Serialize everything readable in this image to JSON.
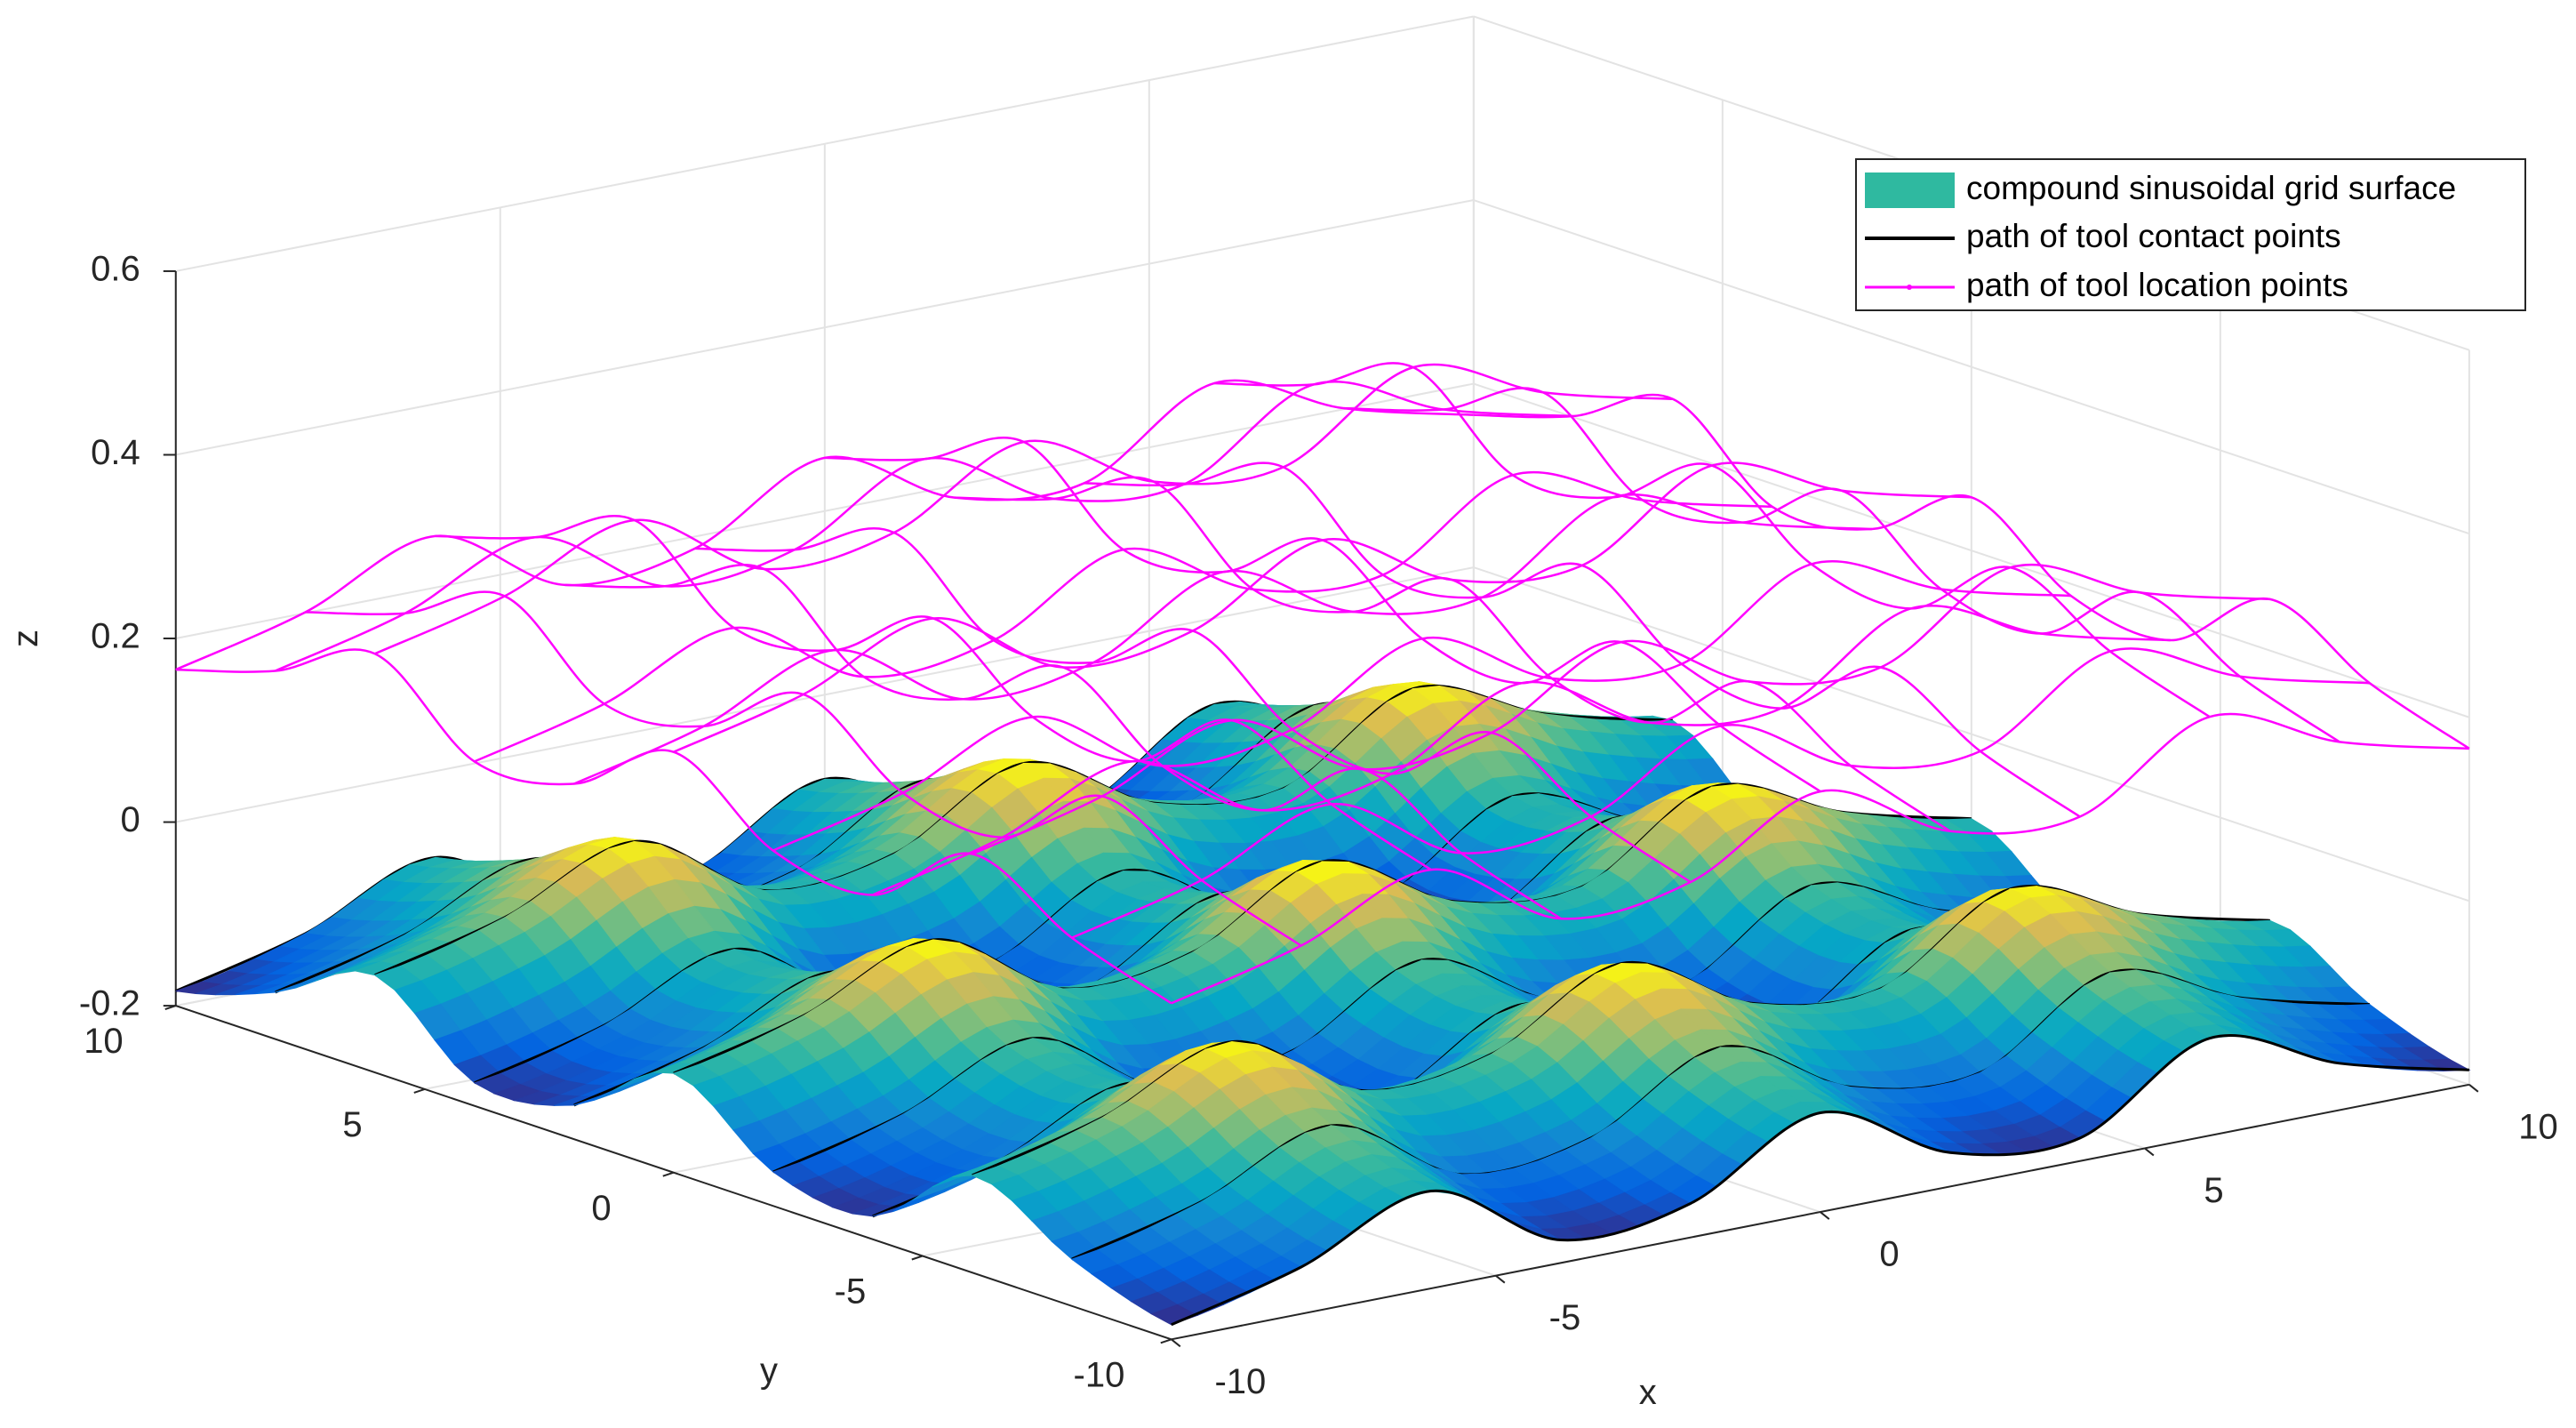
{
  "chart_data": {
    "type": "surface3d",
    "xlabel": "x",
    "ylabel": "y",
    "zlabel": "z",
    "xlim": [
      -10,
      10
    ],
    "ylim": [
      -10,
      10
    ],
    "zlim": [
      -0.2,
      0.6
    ],
    "xticks": [
      -10,
      -5,
      0,
      5,
      10
    ],
    "yticks": [
      -10,
      -5,
      0,
      5,
      10
    ],
    "zticks": [
      -0.2,
      0,
      0.2,
      0.4,
      0.6
    ],
    "grid": true,
    "legend_location": "northeast",
    "x": [
      -10,
      -8,
      -6,
      -4,
      -2,
      0,
      2,
      4,
      6,
      8,
      10
    ],
    "y": [
      -10,
      -8,
      -6,
      -4,
      -2,
      0,
      2,
      4,
      6,
      8,
      10
    ],
    "series": [
      {
        "name": "compound sinusoidal grid surface",
        "color": "#2fb9a0",
        "colormap": "parula",
        "z": [
          [
            -0.184,
            -0.149,
            -0.094,
            -0.175,
            -0.163,
            -0.092,
            -0.163,
            -0.175,
            -0.094,
            -0.149,
            -0.184
          ],
          [
            -0.149,
            -0.114,
            -0.059,
            -0.14,
            -0.128,
            -0.057,
            -0.128,
            -0.14,
            -0.059,
            -0.114,
            -0.149
          ],
          [
            -0.094,
            -0.059,
            -0.004,
            -0.085,
            -0.073,
            -0.002,
            -0.073,
            -0.085,
            -0.004,
            -0.059,
            -0.094
          ],
          [
            -0.175,
            -0.14,
            -0.085,
            -0.166,
            -0.154,
            -0.083,
            -0.154,
            -0.166,
            -0.085,
            -0.14,
            -0.175
          ],
          [
            -0.163,
            -0.128,
            -0.073,
            -0.154,
            -0.142,
            -0.071,
            -0.142,
            -0.154,
            -0.073,
            -0.128,
            -0.163
          ],
          [
            -0.092,
            -0.057,
            -0.002,
            -0.083,
            -0.071,
            0.0,
            -0.071,
            -0.083,
            -0.002,
            -0.057,
            -0.092
          ],
          [
            -0.163,
            -0.128,
            -0.073,
            -0.154,
            -0.142,
            -0.071,
            -0.142,
            -0.154,
            -0.073,
            -0.128,
            -0.163
          ],
          [
            -0.175,
            -0.14,
            -0.085,
            -0.166,
            -0.154,
            -0.083,
            -0.154,
            -0.166,
            -0.085,
            -0.14,
            -0.175
          ],
          [
            -0.094,
            -0.059,
            -0.004,
            -0.085,
            -0.073,
            -0.002,
            -0.073,
            -0.085,
            -0.004,
            -0.059,
            -0.094
          ],
          [
            -0.149,
            -0.114,
            -0.059,
            -0.14,
            -0.128,
            -0.057,
            -0.128,
            -0.14,
            -0.059,
            -0.114,
            -0.149
          ],
          [
            -0.184,
            -0.149,
            -0.094,
            -0.175,
            -0.163,
            -0.092,
            -0.163,
            -0.175,
            -0.094,
            -0.149,
            -0.184
          ]
        ]
      },
      {
        "name": "path of tool contact points",
        "color": "#000000"
      },
      {
        "name": "path of tool location points",
        "color": "#ff00ff",
        "z": [
          [
            0.166,
            0.201,
            0.256,
            0.175,
            0.187,
            0.258,
            0.187,
            0.175,
            0.256,
            0.201,
            0.166
          ],
          [
            0.201,
            0.236,
            0.291,
            0.21,
            0.222,
            0.293,
            0.222,
            0.21,
            0.291,
            0.236,
            0.201
          ],
          [
            0.256,
            0.291,
            0.346,
            0.265,
            0.277,
            0.348,
            0.277,
            0.265,
            0.346,
            0.291,
            0.256
          ],
          [
            0.175,
            0.21,
            0.265,
            0.184,
            0.196,
            0.267,
            0.196,
            0.184,
            0.265,
            0.21,
            0.175
          ],
          [
            0.187,
            0.222,
            0.277,
            0.196,
            0.208,
            0.279,
            0.208,
            0.196,
            0.277,
            0.222,
            0.187
          ],
          [
            0.258,
            0.293,
            0.348,
            0.267,
            0.279,
            0.35,
            0.279,
            0.267,
            0.348,
            0.293,
            0.258
          ],
          [
            0.187,
            0.222,
            0.277,
            0.196,
            0.208,
            0.279,
            0.208,
            0.196,
            0.277,
            0.222,
            0.187
          ],
          [
            0.175,
            0.21,
            0.265,
            0.184,
            0.196,
            0.267,
            0.196,
            0.184,
            0.265,
            0.21,
            0.175
          ],
          [
            0.256,
            0.291,
            0.346,
            0.265,
            0.277,
            0.348,
            0.277,
            0.265,
            0.346,
            0.291,
            0.256
          ],
          [
            0.201,
            0.236,
            0.291,
            0.21,
            0.222,
            0.293,
            0.222,
            0.21,
            0.291,
            0.236,
            0.201
          ],
          [
            0.166,
            0.201,
            0.256,
            0.175,
            0.187,
            0.258,
            0.187,
            0.175,
            0.256,
            0.201,
            0.166
          ]
        ]
      }
    ]
  }
}
